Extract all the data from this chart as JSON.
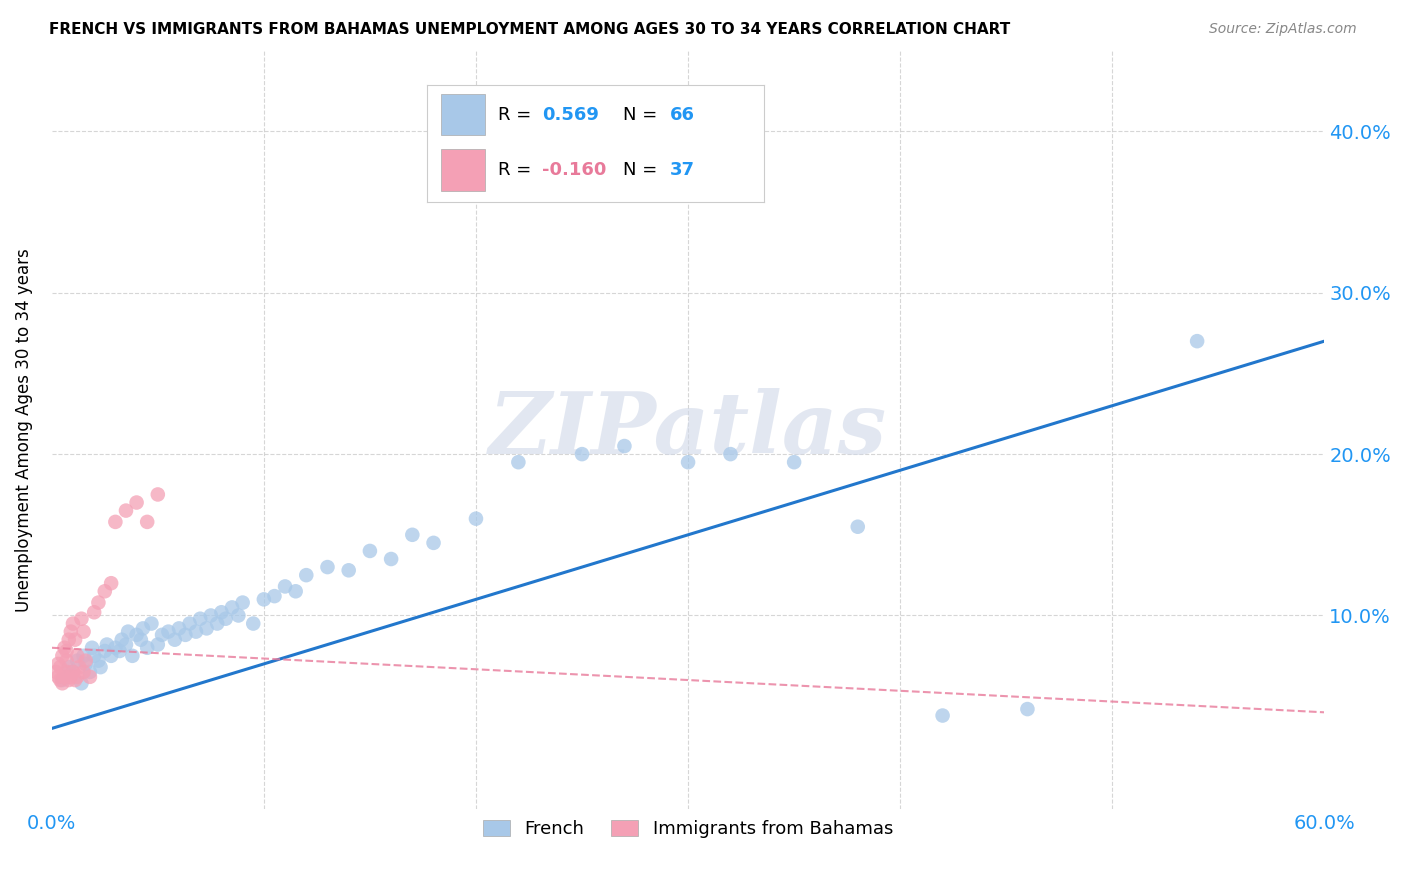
{
  "title": "FRENCH VS IMMIGRANTS FROM BAHAMAS UNEMPLOYMENT AMONG AGES 30 TO 34 YEARS CORRELATION CHART",
  "source": "Source: ZipAtlas.com",
  "ylabel": "Unemployment Among Ages 30 to 34 years",
  "xlim": [
    0.0,
    0.6
  ],
  "ylim": [
    -0.02,
    0.45
  ],
  "plot_ylim": [
    0.0,
    0.45
  ],
  "xticks": [
    0.0,
    0.1,
    0.2,
    0.3,
    0.4,
    0.5,
    0.6
  ],
  "yticks": [
    0.0,
    0.1,
    0.2,
    0.3,
    0.4
  ],
  "french_R": 0.569,
  "french_N": 66,
  "bahamas_R": -0.16,
  "bahamas_N": 37,
  "french_color": "#a8c8e8",
  "bahamas_color": "#f4a0b5",
  "french_line_color": "#2277cc",
  "bahamas_line_color": "#e87a9a",
  "watermark": "ZIPatlas",
  "background_color": "#ffffff",
  "grid_color": "#cccccc",
  "french_x": [
    0.005,
    0.008,
    0.01,
    0.012,
    0.014,
    0.015,
    0.016,
    0.018,
    0.019,
    0.02,
    0.022,
    0.023,
    0.025,
    0.026,
    0.028,
    0.03,
    0.032,
    0.033,
    0.035,
    0.036,
    0.038,
    0.04,
    0.042,
    0.043,
    0.045,
    0.047,
    0.05,
    0.052,
    0.055,
    0.058,
    0.06,
    0.063,
    0.065,
    0.068,
    0.07,
    0.073,
    0.075,
    0.078,
    0.08,
    0.082,
    0.085,
    0.088,
    0.09,
    0.095,
    0.1,
    0.105,
    0.11,
    0.115,
    0.12,
    0.13,
    0.14,
    0.15,
    0.16,
    0.17,
    0.18,
    0.2,
    0.22,
    0.25,
    0.27,
    0.3,
    0.32,
    0.35,
    0.38,
    0.42,
    0.46,
    0.54
  ],
  "french_y": [
    0.06,
    0.068,
    0.065,
    0.072,
    0.058,
    0.075,
    0.07,
    0.065,
    0.08,
    0.075,
    0.072,
    0.068,
    0.078,
    0.082,
    0.075,
    0.08,
    0.078,
    0.085,
    0.082,
    0.09,
    0.075,
    0.088,
    0.085,
    0.092,
    0.08,
    0.095,
    0.082,
    0.088,
    0.09,
    0.085,
    0.092,
    0.088,
    0.095,
    0.09,
    0.098,
    0.092,
    0.1,
    0.095,
    0.102,
    0.098,
    0.105,
    0.1,
    0.108,
    0.095,
    0.11,
    0.112,
    0.118,
    0.115,
    0.125,
    0.13,
    0.128,
    0.14,
    0.135,
    0.15,
    0.145,
    0.16,
    0.195,
    0.2,
    0.205,
    0.195,
    0.2,
    0.195,
    0.155,
    0.038,
    0.042,
    0.27
  ],
  "bahamas_x": [
    0.002,
    0.003,
    0.003,
    0.004,
    0.004,
    0.005,
    0.005,
    0.006,
    0.006,
    0.007,
    0.007,
    0.007,
    0.008,
    0.008,
    0.009,
    0.009,
    0.01,
    0.01,
    0.011,
    0.011,
    0.012,
    0.012,
    0.013,
    0.014,
    0.015,
    0.015,
    0.016,
    0.018,
    0.02,
    0.022,
    0.025,
    0.028,
    0.03,
    0.035,
    0.04,
    0.045,
    0.05
  ],
  "bahamas_y": [
    0.065,
    0.062,
    0.07,
    0.06,
    0.068,
    0.058,
    0.075,
    0.062,
    0.08,
    0.065,
    0.072,
    0.078,
    0.06,
    0.085,
    0.062,
    0.09,
    0.065,
    0.095,
    0.06,
    0.085,
    0.062,
    0.075,
    0.068,
    0.098,
    0.065,
    0.09,
    0.072,
    0.062,
    0.102,
    0.108,
    0.115,
    0.12,
    0.158,
    0.165,
    0.17,
    0.158,
    0.175
  ],
  "french_line_x0": 0.0,
  "french_line_y0": 0.03,
  "french_line_x1": 0.6,
  "french_line_y1": 0.27,
  "bahamas_line_x0": 0.0,
  "bahamas_line_y0": 0.08,
  "bahamas_line_x1": 0.6,
  "bahamas_line_y1": 0.04
}
